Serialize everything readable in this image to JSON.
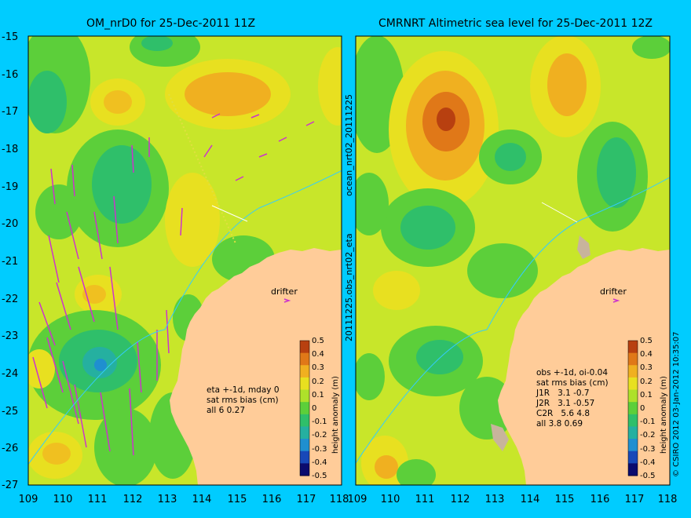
{
  "panels": [
    {
      "title": "OM_nrD0 for 25-Dec-2011 11Z",
      "stats": [
        "eta +-1d, mday 0",
        "sat rms bias (cm)",
        "all 6 0.27"
      ]
    },
    {
      "title": "CMRNRT Altimetric sea level  for 25-Dec-2011 12Z",
      "stats": [
        "obs +-1d, oi-0.04",
        "sat rms bias (cm)",
        "J1R   3.1 -0.7",
        "J2R   3.1 -0.57",
        "C2R   5.6 4.8",
        "all 3.8 0.69"
      ]
    }
  ],
  "axes": {
    "lat_ticks": [
      "-15",
      "-16",
      "-17",
      "-18",
      "-19",
      "-20",
      "-21",
      "-22",
      "-23",
      "-24",
      "-25",
      "-26",
      "-27"
    ],
    "lon_ticks": [
      "109",
      "110",
      "111",
      "112",
      "113",
      "114",
      "115",
      "116",
      "117",
      "118"
    ]
  },
  "colorbar": {
    "label": "height anomaly (m)",
    "ticks": [
      "0.5",
      "0.4",
      "0.3",
      "0.2",
      "0.1",
      "0",
      "-0.1",
      "-0.2",
      "-0.3",
      "-0.4",
      "-0.5"
    ],
    "colors": [
      "#0b0b6e",
      "#1848b8",
      "#1f8fd0",
      "#25b0a0",
      "#2fbf6a",
      "#5ccf3a",
      "#aee12a",
      "#e8e020",
      "#f0b020",
      "#e07818",
      "#b84010"
    ]
  },
  "labels": {
    "drifter": "drifter",
    "mid_label_top": "ocean_nrt02_20111225",
    "mid_label_bottom": "20111225.obs_nrt02_eta",
    "credit": "© CSIRO 2012  03-Jan-2012 10:35:07"
  }
}
